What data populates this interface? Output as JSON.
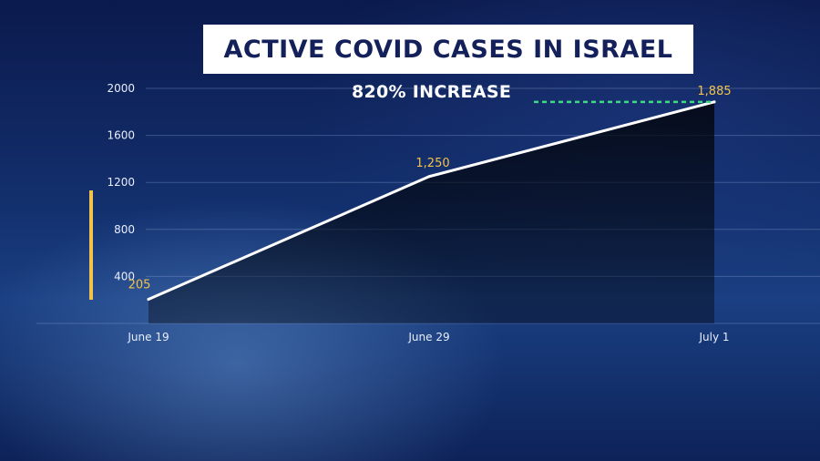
{
  "chart_data": {
    "type": "area",
    "title": "ACTIVE COVID CASES IN ISRAEL",
    "annotation": "820% INCREASE",
    "categories": [
      "June 19",
      "June 29",
      "July 1"
    ],
    "values": [
      205,
      1250,
      1885
    ],
    "data_labels": [
      "205",
      "1,250",
      "1,885"
    ],
    "y_ticks": [
      "400",
      "800",
      "1200",
      "1600",
      "2000"
    ],
    "ylim": [
      0,
      2000
    ],
    "grid": true,
    "colors": {
      "line": "#ffffff",
      "data_label": "#f2c24a",
      "accent_bar": "#f2c24a",
      "annotation_dash": "#3ddc84",
      "title_bg": "#ffffff",
      "title_text": "#14205a"
    }
  }
}
